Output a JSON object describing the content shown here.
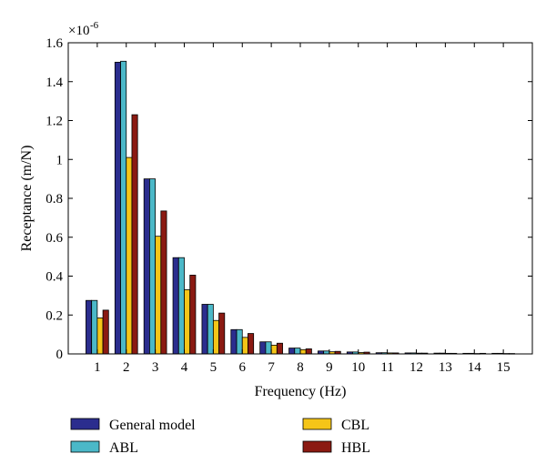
{
  "chart_data": {
    "type": "bar",
    "title": "",
    "xlabel": "Frequency (Hz)",
    "ylabel": "Receptance (m/N)",
    "y_exponent_label": "×10",
    "y_exponent_power": "-6",
    "ylim": [
      0,
      1.6
    ],
    "yticks": [
      0,
      0.2,
      0.4,
      0.6,
      0.8,
      1,
      1.2,
      1.4,
      1.6
    ],
    "ytick_labels": [
      "0",
      "0.2",
      "0.4",
      "0.6",
      "0.8",
      "1",
      "1.2",
      "1.4",
      "1.6"
    ],
    "categories": [
      "1",
      "2",
      "3",
      "4",
      "5",
      "6",
      "7",
      "8",
      "9",
      "10",
      "11",
      "12",
      "13",
      "14",
      "15"
    ],
    "grid": false,
    "legend_position": "below",
    "series": [
      {
        "name": "General model",
        "color": "#2b2d8e",
        "values": [
          0.275,
          1.5,
          0.9,
          0.495,
          0.255,
          0.125,
          0.062,
          0.03,
          0.015,
          0.01,
          0.006,
          0.005,
          0.004,
          0.003,
          0.003
        ]
      },
      {
        "name": "ABL",
        "color": "#4bb8c8",
        "values": [
          0.275,
          1.505,
          0.9,
          0.495,
          0.255,
          0.125,
          0.062,
          0.03,
          0.015,
          0.01,
          0.006,
          0.005,
          0.004,
          0.003,
          0.003
        ]
      },
      {
        "name": "CBL",
        "color": "#f5c518",
        "values": [
          0.185,
          1.01,
          0.605,
          0.33,
          0.172,
          0.085,
          0.045,
          0.022,
          0.011,
          0.007,
          0.005,
          0.004,
          0.003,
          0.002,
          0.002
        ]
      },
      {
        "name": "HBL",
        "color": "#8b1a12",
        "values": [
          0.225,
          1.23,
          0.735,
          0.405,
          0.21,
          0.105,
          0.055,
          0.026,
          0.013,
          0.009,
          0.005,
          0.004,
          0.003,
          0.003,
          0.002
        ]
      }
    ]
  }
}
